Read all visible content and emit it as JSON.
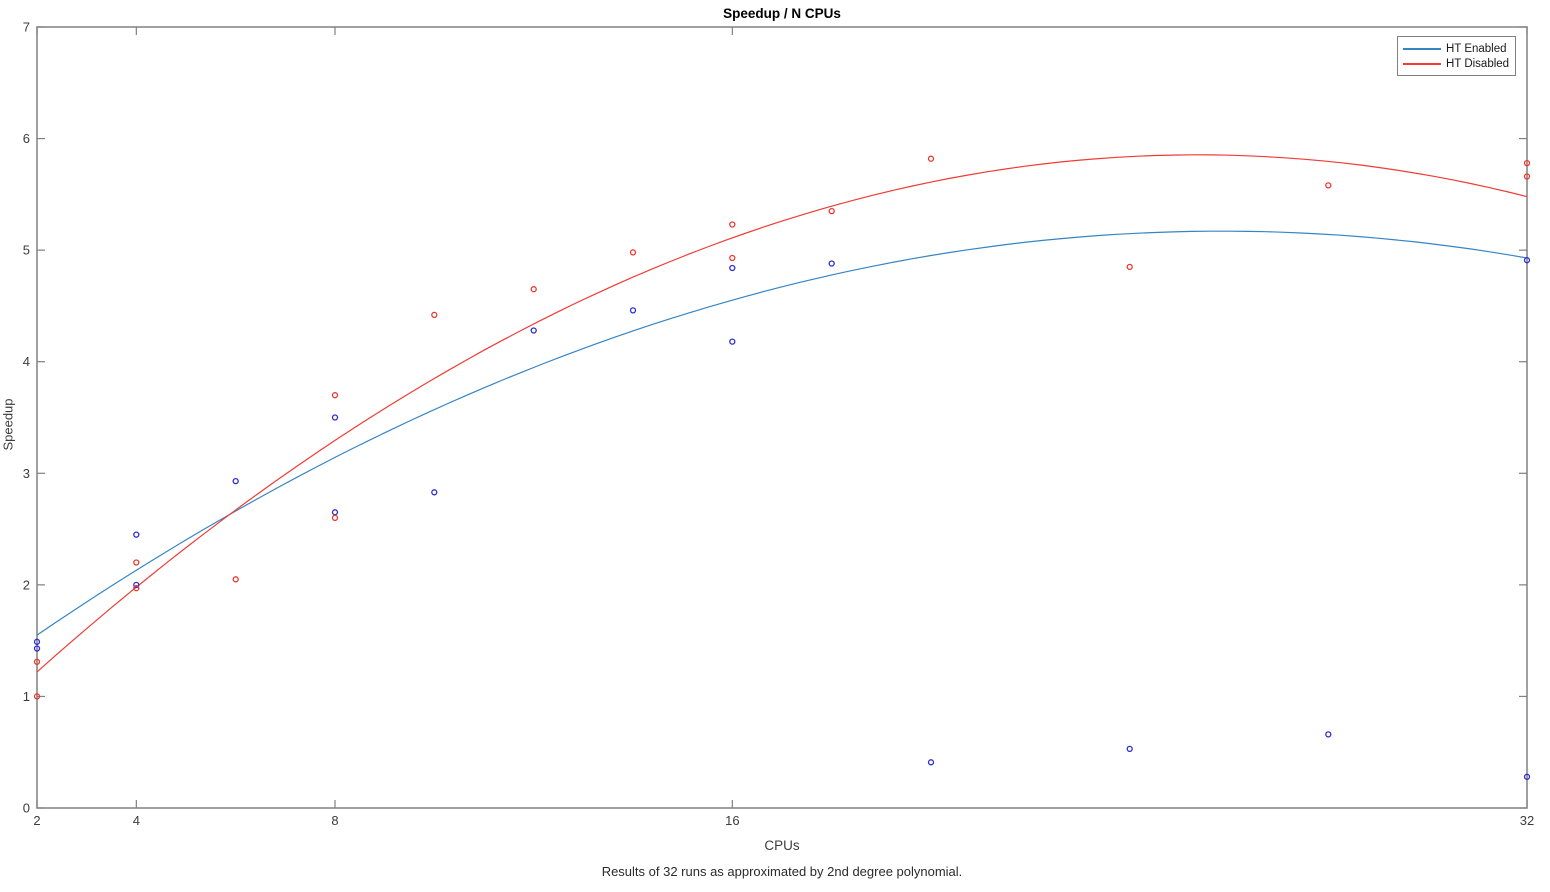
{
  "page": {
    "background_color": "#ffffff"
  },
  "chart_data": {
    "type": "scatter",
    "title": "Speedup / N CPUs",
    "xlabel": "CPUs",
    "ylabel": "Speedup",
    "caption": "Results of 32 runs as approximated by 2nd degree polynomial.",
    "x_scale": "linear",
    "xlim": [
      2,
      32
    ],
    "ylim": [
      0,
      7
    ],
    "x_ticks": [
      2,
      4,
      8,
      16,
      32
    ],
    "y_ticks": [
      0,
      1,
      2,
      3,
      4,
      5,
      6,
      7
    ],
    "grid": false,
    "axis_color": "#808080",
    "tick_label_color": "#3c3c3c",
    "legend": {
      "position": "top-right",
      "border_color": "#808080"
    },
    "series": [
      {
        "name": "HT Enabled",
        "line_color": "#3585c5",
        "marker_color": "#2d2dd0",
        "marker": "open-circle",
        "points": [
          [
            2,
            1.49
          ],
          [
            2,
            1.43
          ],
          [
            4,
            2.45
          ],
          [
            4,
            2.0
          ],
          [
            6,
            2.93
          ],
          [
            8,
            3.5
          ],
          [
            8,
            2.65
          ],
          [
            10,
            2.83
          ],
          [
            12,
            4.28
          ],
          [
            14,
            4.46
          ],
          [
            16,
            4.84
          ],
          [
            16,
            4.18
          ],
          [
            18,
            4.88
          ],
          [
            20,
            0.41
          ],
          [
            24,
            0.53
          ],
          [
            28,
            0.66
          ],
          [
            32,
            4.91
          ],
          [
            32,
            0.28
          ]
        ],
        "fit": {
          "type": "poly2",
          "coefficients": [
            0.9176,
            0.32894,
            -0.0063611
          ]
        }
      },
      {
        "name": "HT Disabled",
        "line_color": "#ef3c35",
        "marker_color": "#e8392f",
        "marker": "open-circle",
        "points": [
          [
            2,
            1.31
          ],
          [
            2,
            1.0
          ],
          [
            4,
            2.2
          ],
          [
            4,
            1.97
          ],
          [
            6,
            2.05
          ],
          [
            8,
            3.7
          ],
          [
            8,
            2.6
          ],
          [
            10,
            4.42
          ],
          [
            12,
            4.65
          ],
          [
            14,
            4.98
          ],
          [
            16,
            5.23
          ],
          [
            16,
            4.93
          ],
          [
            18,
            5.35
          ],
          [
            20,
            5.82
          ],
          [
            24,
            4.85
          ],
          [
            28,
            5.58
          ],
          [
            32,
            5.78
          ],
          [
            32,
            5.66
          ]
        ],
        "fit": {
          "type": "poly2",
          "coefficients": [
            0.39256,
            0.4307,
            -0.008491
          ]
        }
      }
    ]
  }
}
